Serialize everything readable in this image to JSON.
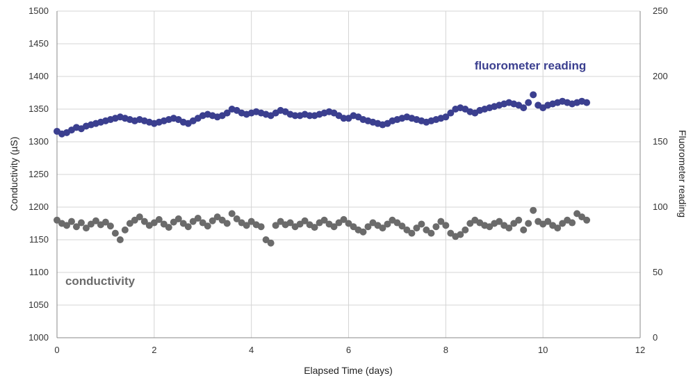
{
  "chart_data": {
    "type": "scatter",
    "xlabel": "Elapsed Time (days)",
    "ylabel": "Conductivity (µS)",
    "y2label": "Fluorometer reading",
    "xlim": [
      0,
      12
    ],
    "ylim": [
      1000,
      1500
    ],
    "y2lim": [
      0,
      250
    ],
    "x_ticks": [
      "0",
      "2",
      "4",
      "6",
      "8",
      "10",
      "12"
    ],
    "y_ticks": [
      "1000",
      "1050",
      "1100",
      "1150",
      "1200",
      "1250",
      "1300",
      "1350",
      "1400",
      "1450",
      "1500"
    ],
    "y2_ticks": [
      "0",
      "50",
      "100",
      "150",
      "200",
      "250"
    ],
    "grid": true,
    "annotations": {
      "fluorometer": "fluorometer reading",
      "conductivity": "conductivity"
    },
    "colors": {
      "fluorometer": "#3b3f8f",
      "conductivity": "#6b6b6b",
      "grid": "#d4d4d4",
      "axis": "#888888"
    },
    "series": [
      {
        "name": "fluorometer reading",
        "axis": "right",
        "color": "#3b3f8f",
        "x": [
          0.0,
          0.1,
          0.2,
          0.3,
          0.4,
          0.5,
          0.6,
          0.7,
          0.8,
          0.9,
          1.0,
          1.1,
          1.2,
          1.3,
          1.4,
          1.5,
          1.6,
          1.7,
          1.8,
          1.9,
          2.0,
          2.1,
          2.2,
          2.3,
          2.4,
          2.5,
          2.6,
          2.7,
          2.8,
          2.9,
          3.0,
          3.1,
          3.2,
          3.3,
          3.4,
          3.5,
          3.6,
          3.7,
          3.8,
          3.9,
          4.0,
          4.1,
          4.2,
          4.3,
          4.4,
          4.5,
          4.6,
          4.7,
          4.8,
          4.9,
          5.0,
          5.1,
          5.2,
          5.3,
          5.4,
          5.5,
          5.6,
          5.7,
          5.8,
          5.9,
          6.0,
          6.1,
          6.2,
          6.3,
          6.4,
          6.5,
          6.6,
          6.7,
          6.8,
          6.9,
          7.0,
          7.1,
          7.2,
          7.3,
          7.4,
          7.5,
          7.6,
          7.7,
          7.8,
          7.9,
          8.0,
          8.1,
          8.2,
          8.3,
          8.4,
          8.5,
          8.6,
          8.7,
          8.8,
          8.9,
          9.0,
          9.1,
          9.2,
          9.3,
          9.4,
          9.5,
          9.6,
          9.7,
          9.8,
          9.9,
          10.0,
          10.1,
          10.2,
          10.3,
          10.4,
          10.5,
          10.6,
          10.7,
          10.8,
          10.9
        ],
        "values": [
          158,
          156,
          157,
          159,
          161,
          160,
          162,
          163,
          164,
          165,
          166,
          167,
          168,
          169,
          168,
          167,
          166,
          167,
          166,
          165,
          164,
          165,
          166,
          167,
          168,
          167,
          165,
          164,
          166,
          168,
          170,
          171,
          170,
          169,
          170,
          172,
          175,
          174,
          172,
          171,
          172,
          173,
          172,
          171,
          170,
          172,
          174,
          173,
          171,
          170,
          170,
          171,
          170,
          170,
          171,
          172,
          173,
          172,
          170,
          168,
          168,
          170,
          169,
          167,
          166,
          165,
          164,
          163,
          164,
          166,
          167,
          168,
          169,
          168,
          167,
          166,
          165,
          166,
          167,
          168,
          169,
          172,
          175,
          176,
          175,
          173,
          172,
          174,
          175,
          176,
          177,
          178,
          179,
          180,
          179,
          178,
          176,
          180,
          186,
          178,
          176,
          178,
          179,
          180,
          181,
          180,
          179,
          180,
          181,
          180
        ]
      },
      {
        "name": "conductivity",
        "axis": "left",
        "color": "#6b6b6b",
        "x": [
          0.0,
          0.1,
          0.2,
          0.3,
          0.4,
          0.5,
          0.6,
          0.7,
          0.8,
          0.9,
          1.0,
          1.1,
          1.2,
          1.3,
          1.4,
          1.5,
          1.6,
          1.7,
          1.8,
          1.9,
          2.0,
          2.1,
          2.2,
          2.3,
          2.4,
          2.5,
          2.6,
          2.7,
          2.8,
          2.9,
          3.0,
          3.1,
          3.2,
          3.3,
          3.4,
          3.5,
          3.6,
          3.7,
          3.8,
          3.9,
          4.0,
          4.1,
          4.2,
          4.3,
          4.4,
          4.5,
          4.6,
          4.7,
          4.8,
          4.9,
          5.0,
          5.1,
          5.2,
          5.3,
          5.4,
          5.5,
          5.6,
          5.7,
          5.8,
          5.9,
          6.0,
          6.1,
          6.2,
          6.3,
          6.4,
          6.5,
          6.6,
          6.7,
          6.8,
          6.9,
          7.0,
          7.1,
          7.2,
          7.3,
          7.4,
          7.5,
          7.6,
          7.7,
          7.8,
          7.9,
          8.0,
          8.1,
          8.2,
          8.3,
          8.4,
          8.5,
          8.6,
          8.7,
          8.8,
          8.9,
          9.0,
          9.1,
          9.2,
          9.3,
          9.4,
          9.5,
          9.6,
          9.7,
          9.8,
          9.9,
          10.0,
          10.1,
          10.2,
          10.3,
          10.4,
          10.5,
          10.6,
          10.7,
          10.8,
          10.9
        ],
        "values": [
          1180,
          1175,
          1172,
          1178,
          1170,
          1176,
          1168,
          1174,
          1179,
          1173,
          1177,
          1171,
          1160,
          1150,
          1165,
          1175,
          1180,
          1185,
          1178,
          1172,
          1176,
          1181,
          1174,
          1169,
          1177,
          1182,
          1175,
          1170,
          1178,
          1183,
          1176,
          1171,
          1179,
          1185,
          1180,
          1175,
          1190,
          1182,
          1176,
          1172,
          1178,
          1173,
          1170,
          1150,
          1145,
          1172,
          1178,
          1173,
          1176,
          1170,
          1174,
          1179,
          1173,
          1169,
          1176,
          1180,
          1174,
          1170,
          1176,
          1181,
          1175,
          1170,
          1165,
          1162,
          1170,
          1176,
          1172,
          1168,
          1174,
          1180,
          1176,
          1171,
          1165,
          1160,
          1168,
          1174,
          1165,
          1160,
          1170,
          1178,
          1172,
          1160,
          1155,
          1158,
          1165,
          1175,
          1180,
          1176,
          1172,
          1170,
          1175,
          1178,
          1172,
          1168,
          1175,
          1180,
          1165,
          1175,
          1195,
          1178,
          1174,
          1178,
          1172,
          1168,
          1175,
          1180,
          1176,
          1190,
          1185,
          1180
        ]
      }
    ]
  }
}
